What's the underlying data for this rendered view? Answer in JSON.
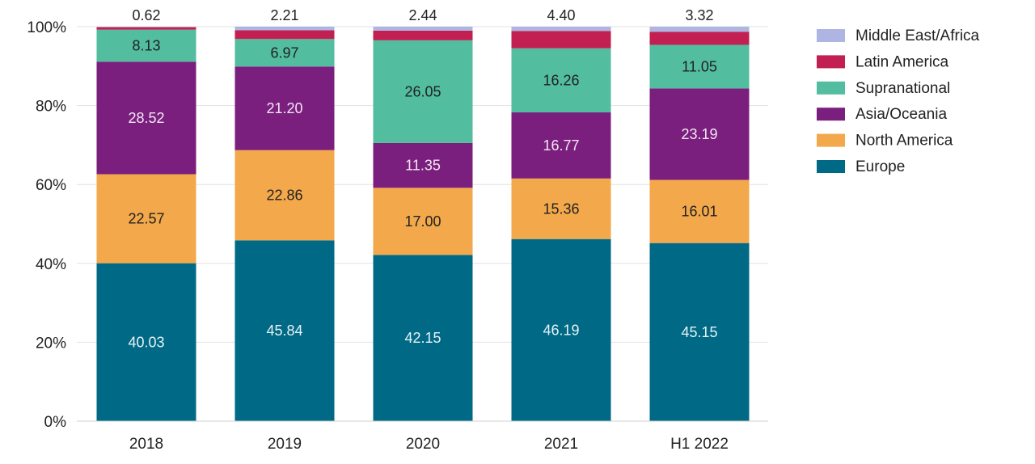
{
  "chart_data": {
    "type": "bar",
    "stacked": true,
    "percent": true,
    "categories": [
      "2018",
      "2019",
      "2020",
      "2021",
      "H1 2022"
    ],
    "series": [
      {
        "name": "Europe",
        "color": "#006a86",
        "label_color": "#e8f1f4",
        "values": [
          40.03,
          45.84,
          42.15,
          46.19,
          45.15
        ],
        "labels": [
          "40.03",
          "45.84",
          "42.15",
          "46.19",
          "45.15"
        ]
      },
      {
        "name": "North America",
        "color": "#f2a84b",
        "label_color": "#222222",
        "values": [
          22.57,
          22.86,
          17.0,
          15.36,
          16.01
        ],
        "labels": [
          "22.57",
          "22.86",
          "17.00",
          "15.36",
          "16.01"
        ]
      },
      {
        "name": "Asia/Oceania",
        "color": "#7b1f7e",
        "label_color": "#f2e6f2",
        "values": [
          28.52,
          21.2,
          11.35,
          16.77,
          23.19
        ],
        "labels": [
          "28.52",
          "21.20",
          "11.35",
          "16.77",
          "23.19"
        ]
      },
      {
        "name": "Supranational",
        "color": "#52bd9f",
        "label_color": "#222222",
        "values": [
          8.13,
          6.97,
          26.05,
          16.26,
          11.05
        ],
        "labels": [
          "8.13",
          "6.97",
          "26.05",
          "16.26",
          "11.05"
        ]
      },
      {
        "name": "Latin America",
        "color": "#c21f52",
        "label_color": "#ffffff",
        "values": [
          0.62,
          2.21,
          2.44,
          4.4,
          3.32
        ],
        "labels": [
          "",
          "",
          "",
          "",
          ""
        ]
      },
      {
        "name": "Middle East/Africa",
        "color": "#aeb5e2",
        "label_color": "#222222",
        "values": [
          0.13,
          0.92,
          1.01,
          1.08,
          1.28
        ],
        "labels": [
          "",
          "",
          "",
          "",
          ""
        ]
      }
    ],
    "top_labels": [
      "0.62",
      "2.21",
      "2.44",
      "4.40",
      "3.32"
    ],
    "y_ticks": [
      "0%",
      "20%",
      "40%",
      "60%",
      "80%",
      "100%"
    ],
    "ylim": [
      0,
      100
    ],
    "grid": true,
    "legend": {
      "position": "right",
      "items": [
        "Middle East/Africa",
        "Latin America",
        "Supranational",
        "Asia/Oceania",
        "North America",
        "Europe"
      ]
    }
  }
}
